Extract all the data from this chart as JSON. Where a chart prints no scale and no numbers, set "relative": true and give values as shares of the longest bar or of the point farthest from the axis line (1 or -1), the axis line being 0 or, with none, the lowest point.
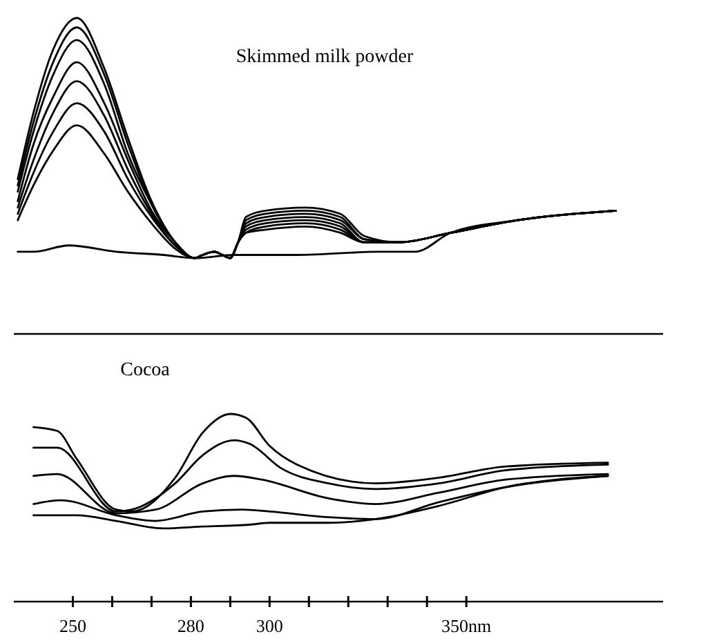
{
  "chart_data": [
    {
      "type": "line",
      "title": "Skimmed milk powder",
      "relative": true,
      "xlim": [
        235,
        400
      ],
      "tick_labels": false,
      "series": [
        {
          "color": "#000000",
          "x": [
            236,
            240,
            245,
            251,
            258,
            264,
            270,
            276,
            281,
            283,
            286,
            288,
            290,
            292,
            294,
            299,
            309,
            318,
            324,
            333,
            346,
            363,
            388
          ],
          "values": [
            0.49,
            0.7,
            0.9,
            1.0,
            0.84,
            0.62,
            0.42,
            0.29,
            0.24,
            0.25,
            0.26,
            0.25,
            0.24,
            0.29,
            0.37,
            0.39,
            0.4,
            0.38,
            0.31,
            0.29,
            0.32,
            0.36,
            0.39
          ]
        },
        {
          "color": "#000000",
          "x": [
            236,
            240,
            245,
            251,
            258,
            264,
            270,
            276,
            281,
            283,
            286,
            288,
            290,
            292,
            294,
            299,
            309,
            318,
            324,
            333,
            346,
            363,
            388
          ],
          "values": [
            0.47,
            0.67,
            0.86,
            0.97,
            0.82,
            0.6,
            0.41,
            0.29,
            0.24,
            0.25,
            0.26,
            0.25,
            0.24,
            0.29,
            0.36,
            0.38,
            0.39,
            0.37,
            0.3,
            0.29,
            0.32,
            0.36,
            0.39
          ]
        },
        {
          "color": "#000000",
          "x": [
            236,
            240,
            245,
            251,
            258,
            264,
            270,
            276,
            281,
            283,
            286,
            288,
            290,
            292,
            294,
            299,
            309,
            318,
            324,
            333,
            346,
            363,
            388
          ],
          "values": [
            0.45,
            0.64,
            0.82,
            0.93,
            0.79,
            0.57,
            0.41,
            0.29,
            0.24,
            0.25,
            0.26,
            0.25,
            0.24,
            0.29,
            0.35,
            0.37,
            0.38,
            0.36,
            0.3,
            0.29,
            0.32,
            0.36,
            0.39
          ]
        },
        {
          "color": "#000000",
          "x": [
            236,
            240,
            245,
            251,
            258,
            264,
            270,
            276,
            281,
            283,
            286,
            288,
            290,
            292,
            294,
            299,
            309,
            318,
            324,
            333,
            346,
            363,
            388
          ],
          "values": [
            0.42,
            0.6,
            0.75,
            0.86,
            0.73,
            0.55,
            0.39,
            0.29,
            0.24,
            0.25,
            0.26,
            0.25,
            0.24,
            0.29,
            0.34,
            0.36,
            0.37,
            0.35,
            0.29,
            0.29,
            0.32,
            0.36,
            0.39
          ]
        },
        {
          "color": "#000000",
          "x": [
            236,
            240,
            245,
            251,
            258,
            264,
            270,
            276,
            281,
            283,
            286,
            288,
            290,
            292,
            294,
            299,
            309,
            318,
            324,
            333,
            346,
            363,
            388
          ],
          "values": [
            0.4,
            0.55,
            0.7,
            0.8,
            0.69,
            0.52,
            0.38,
            0.28,
            0.24,
            0.25,
            0.26,
            0.25,
            0.24,
            0.29,
            0.33,
            0.35,
            0.36,
            0.34,
            0.29,
            0.29,
            0.32,
            0.36,
            0.39
          ]
        },
        {
          "color": "#000000",
          "x": [
            236,
            240,
            245,
            251,
            258,
            264,
            270,
            276,
            281,
            283,
            286,
            288,
            290,
            292,
            294,
            299,
            309,
            318,
            324,
            333,
            346,
            363,
            388
          ],
          "values": [
            0.38,
            0.51,
            0.64,
            0.73,
            0.64,
            0.49,
            0.37,
            0.28,
            0.24,
            0.25,
            0.26,
            0.25,
            0.24,
            0.29,
            0.32,
            0.34,
            0.35,
            0.33,
            0.29,
            0.29,
            0.32,
            0.36,
            0.39
          ]
        },
        {
          "color": "#000000",
          "x": [
            236,
            240,
            245,
            251,
            258,
            264,
            270,
            276,
            281,
            283,
            286,
            288,
            290,
            292,
            294,
            299,
            309,
            318,
            324,
            333,
            346,
            363,
            388
          ],
          "values": [
            0.36,
            0.47,
            0.58,
            0.66,
            0.57,
            0.45,
            0.35,
            0.27,
            0.24,
            0.25,
            0.26,
            0.25,
            0.24,
            0.29,
            0.32,
            0.33,
            0.34,
            0.32,
            0.29,
            0.29,
            0.32,
            0.36,
            0.39
          ]
        },
        {
          "color": "#000000",
          "x": [
            236,
            240,
            249,
            261,
            273,
            281,
            291,
            307,
            328,
            337,
            346,
            363,
            388
          ],
          "values": [
            0.26,
            0.26,
            0.28,
            0.26,
            0.25,
            0.24,
            0.25,
            0.25,
            0.26,
            0.26,
            0.32,
            0.36,
            0.39
          ]
        }
      ]
    },
    {
      "type": "line",
      "title": "Cocoa",
      "relative": true,
      "xlim": [
        235,
        400
      ],
      "tick_labels": "x",
      "xticks": [
        250,
        {
          "value": 260,
          "label": null
        },
        {
          "value": 270,
          "label": null
        },
        280,
        {
          "value": 290,
          "label": null
        },
        300,
        {
          "value": 310,
          "label": null
        },
        {
          "value": 320,
          "label": null
        },
        {
          "value": 330,
          "label": null
        },
        {
          "value": 340,
          "label": null
        },
        {
          "value": 350,
          "label": "350nm"
        }
      ],
      "series": [
        {
          "color": "#000000",
          "x": [
            240,
            246,
            251,
            261,
            265,
            276,
            283,
            290,
            294,
            300,
            307,
            327,
            343,
            360,
            386
          ],
          "values": [
            0.93,
            0.91,
            0.76,
            0.49,
            0.48,
            0.66,
            0.9,
            1.0,
            0.98,
            0.83,
            0.73,
            0.63,
            0.66,
            0.72,
            0.74
          ]
        },
        {
          "color": "#000000",
          "x": [
            240,
            246,
            261,
            265,
            276,
            283,
            291,
            295,
            303,
            315,
            327,
            343,
            360,
            386
          ],
          "values": [
            0.82,
            0.82,
            0.48,
            0.49,
            0.63,
            0.78,
            0.86,
            0.84,
            0.71,
            0.63,
            0.6,
            0.63,
            0.7,
            0.73
          ]
        },
        {
          "color": "#000000",
          "x": [
            240,
            246,
            261,
            271,
            283,
            291,
            298,
            315,
            327,
            343,
            360,
            386
          ],
          "values": [
            0.67,
            0.68,
            0.47,
            0.49,
            0.63,
            0.67,
            0.65,
            0.55,
            0.52,
            0.58,
            0.65,
            0.68
          ]
        },
        {
          "color": "#000000",
          "x": [
            240,
            247,
            261,
            271,
            283,
            293,
            300,
            315,
            327,
            343,
            360,
            386
          ],
          "values": [
            0.52,
            0.54,
            0.46,
            0.43,
            0.48,
            0.49,
            0.48,
            0.45,
            0.44,
            0.53,
            0.61,
            0.67
          ]
        },
        {
          "color": "#000000",
          "x": [
            240,
            251,
            261,
            273,
            283,
            295,
            300,
            315,
            327,
            343,
            360,
            386
          ],
          "values": [
            0.46,
            0.46,
            0.43,
            0.39,
            0.4,
            0.41,
            0.42,
            0.42,
            0.44,
            0.51,
            0.61,
            0.67
          ]
        }
      ]
    }
  ]
}
